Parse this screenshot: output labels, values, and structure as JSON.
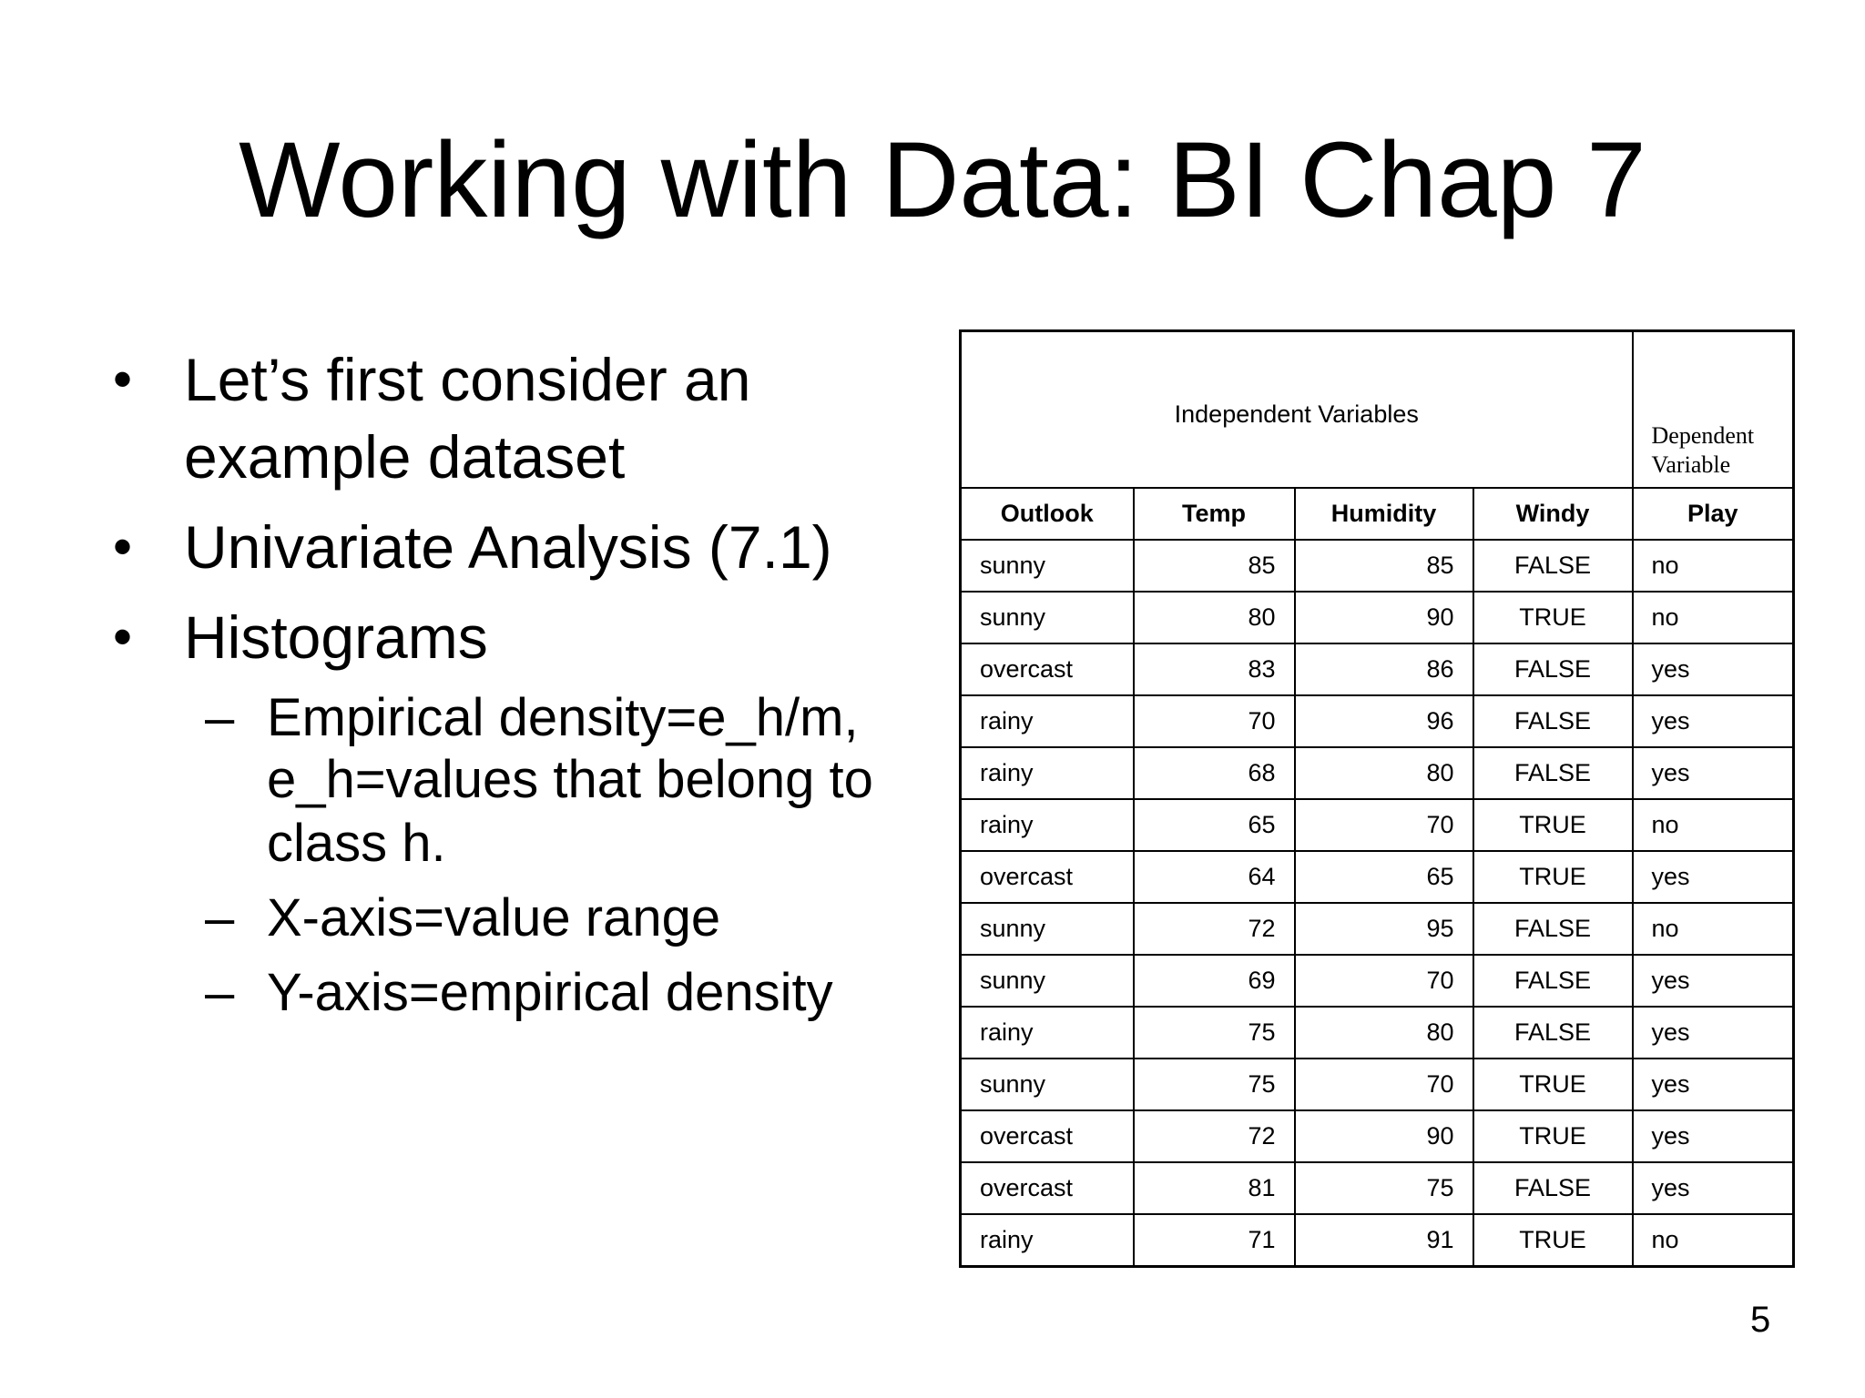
{
  "title": "Working with Data: BI Chap 7",
  "bullets": [
    {
      "lines": [
        "Let’s first consider an",
        "example dataset"
      ]
    },
    {
      "lines": [
        "Univariate Analysis (7.1)"
      ]
    },
    {
      "lines": [
        "Histograms"
      ],
      "sub": [
        {
          "lines": [
            "Empirical density=e_h/m,",
            "e_h=values that belong to",
            "class h."
          ]
        },
        {
          "lines": [
            "X-axis=value range"
          ]
        },
        {
          "lines": [
            "Y-axis=empirical density"
          ]
        }
      ]
    }
  ],
  "bullet_glyph": "•",
  "sub_glyph": "–",
  "table": {
    "group_independent": "Independent Variables",
    "group_dependent": [
      "Dependent",
      "Variable"
    ],
    "headers": [
      "Outlook",
      "Temp",
      "Humidity",
      "Windy",
      "Play"
    ],
    "rows": [
      [
        "sunny",
        "85",
        "85",
        "FALSE",
        "no"
      ],
      [
        "sunny",
        "80",
        "90",
        "TRUE",
        "no"
      ],
      [
        "overcast",
        "83",
        "86",
        "FALSE",
        "yes"
      ],
      [
        "rainy",
        "70",
        "96",
        "FALSE",
        "yes"
      ],
      [
        "rainy",
        "68",
        "80",
        "FALSE",
        "yes"
      ],
      [
        "rainy",
        "65",
        "70",
        "TRUE",
        "no"
      ],
      [
        "overcast",
        "64",
        "65",
        "TRUE",
        "yes"
      ],
      [
        "sunny",
        "72",
        "95",
        "FALSE",
        "no"
      ],
      [
        "sunny",
        "69",
        "70",
        "FALSE",
        "yes"
      ],
      [
        "rainy",
        "75",
        "80",
        "FALSE",
        "yes"
      ],
      [
        "sunny",
        "75",
        "70",
        "TRUE",
        "yes"
      ],
      [
        "overcast",
        "72",
        "90",
        "TRUE",
        "yes"
      ],
      [
        "overcast",
        "81",
        "75",
        "FALSE",
        "yes"
      ],
      [
        "rainy",
        "71",
        "91",
        "TRUE",
        "no"
      ]
    ]
  },
  "page_number": "5"
}
